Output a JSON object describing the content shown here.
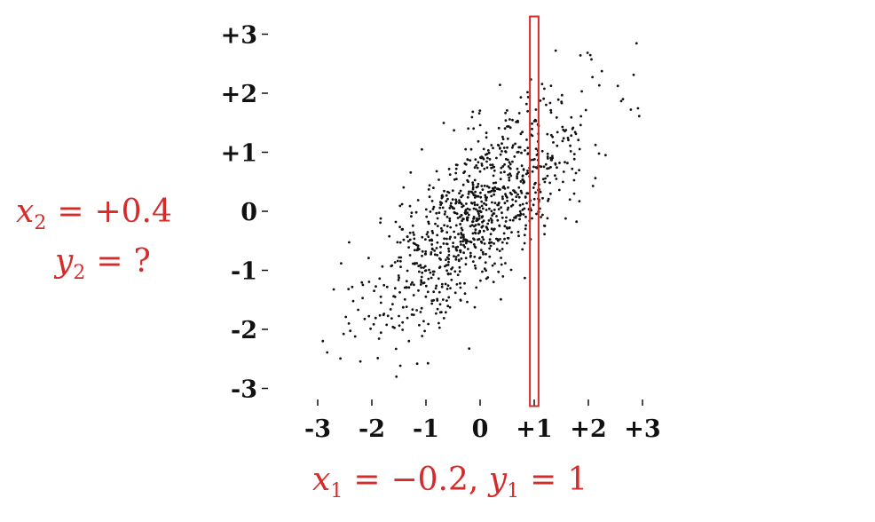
{
  "chart_data": {
    "type": "scatter",
    "title": "",
    "xlabel": "",
    "ylabel": "",
    "xlim": [
      -3,
      3
    ],
    "ylim": [
      -3,
      3
    ],
    "x_ticks": [
      "-3",
      "-2",
      "-1",
      "0",
      "+1",
      "+2",
      "+3"
    ],
    "y_ticks": [
      "+3",
      "+2",
      "+1",
      "0",
      "-1",
      "-2",
      "-3"
    ],
    "series": [
      {
        "point_count": 1000,
        "correlation": 0.75,
        "mean": [
          0,
          0
        ],
        "sd": [
          1,
          1
        ],
        "color": "#111111"
      }
    ],
    "highlight_band": {
      "x_center": 1.0,
      "x_halfwidth": 0.08,
      "y_range": [
        -3.3,
        3.3
      ],
      "color": "#d42b2b"
    },
    "annotations": {
      "left_line1": {
        "var": "x",
        "sub": "2",
        "op": "=",
        "value": "+0.4"
      },
      "left_line2": {
        "var": "y",
        "sub": "2",
        "op": "=",
        "value": "?"
      },
      "bottom": {
        "var1": "x",
        "sub1": "1",
        "op1": "=",
        "value1": "−0.2,",
        "var2": "y",
        "sub2": "1",
        "op2": "=",
        "value2": "1"
      }
    }
  }
}
